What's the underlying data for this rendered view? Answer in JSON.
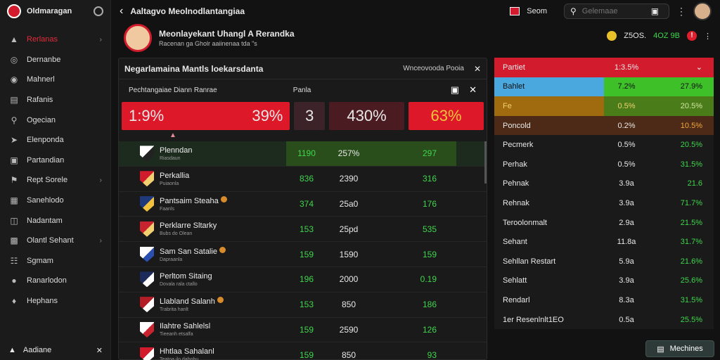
{
  "sidebar": {
    "brand": "Oldmaragan",
    "items": [
      {
        "label": "Rerlanas",
        "icon": "shield-icon",
        "active": true,
        "chevron": true
      },
      {
        "label": "Dernanbe",
        "icon": "compass-icon",
        "active": false,
        "chevron": false
      },
      {
        "label": "Mahnerl",
        "icon": "globe-icon",
        "active": false,
        "chevron": false
      },
      {
        "label": "Rafanis",
        "icon": "chart-icon",
        "active": false,
        "chevron": false
      },
      {
        "label": "Ogecian",
        "icon": "search-icon",
        "active": false,
        "chevron": false
      },
      {
        "label": "Elenponda",
        "icon": "whistle-icon",
        "active": false,
        "chevron": false
      },
      {
        "label": "Partandian",
        "icon": "ball-icon",
        "active": false,
        "chevron": false
      },
      {
        "label": "Rept Sorele",
        "icon": "flag-icon",
        "active": false,
        "chevron": true
      },
      {
        "label": "Sanehlodo",
        "icon": "calendar-icon",
        "active": false,
        "chevron": false
      },
      {
        "label": "Nadantam",
        "icon": "book-icon",
        "active": false,
        "chevron": false
      },
      {
        "label": "Olantl Sehant",
        "icon": "tv-icon",
        "active": false,
        "chevron": true
      },
      {
        "label": "Sgmam",
        "icon": "grid-icon",
        "active": false,
        "chevron": false
      },
      {
        "label": "Ranarlodon",
        "icon": "pin-icon",
        "active": false,
        "chevron": false
      },
      {
        "label": "Hephans",
        "icon": "badge-icon",
        "active": false,
        "chevron": false
      }
    ],
    "footer": "Aadiane"
  },
  "topbar": {
    "title": "Aaltagvo Meolnodlantangiaa",
    "score": "Seom",
    "search_placeholder": "Gelemaae"
  },
  "profile": {
    "name": "Meonlayekant Uhangl A Rerandka",
    "subtitle": "Racenan ga Gholr aaiinenaa tda \"s"
  },
  "stats": {
    "coins": "Z5OS.",
    "change": "4OZ 9B"
  },
  "panel": {
    "title": "Negarlamaina Mantls loekarsdanta",
    "right_label": "Wnceovooda Pooia",
    "sub_left": "Pechtangaiae Diann Ranrae",
    "sub_mid": "Panla",
    "big": [
      "1:9%",
      "39%",
      "3",
      "430%",
      "63%"
    ],
    "rows": [
      {
        "name": "Plenndan",
        "sub": "Riasdaun",
        "c1": "1190",
        "c2": "257%",
        "c3": "297",
        "crest": [
          "#ffffff",
          "#222222"
        ],
        "star": false,
        "hl": true
      },
      {
        "name": "Perkallia",
        "sub": "Puiaonla",
        "c1": "836",
        "c2": "2390",
        "c3": "316",
        "crest": [
          "#d21b2c",
          "#f2d070"
        ],
        "star": false,
        "hl": false
      },
      {
        "name": "Pantsaim Steaha",
        "sub": "Faanls",
        "c1": "374",
        "c2": "25a0",
        "c3": "176",
        "crest": [
          "#1f3a7a",
          "#f2c23d"
        ],
        "star": true,
        "hl": false
      },
      {
        "name": "Perklarre Sltarky",
        "sub": "Bubs do Olean",
        "c1": "153",
        "c2": "25pd",
        "c3": "535",
        "crest": [
          "#c7242f",
          "#f2d070"
        ],
        "star": false,
        "hl": false
      },
      {
        "name": "Sam San Satalie",
        "sub": "Dapraanla",
        "c1": "159",
        "c2": "1590",
        "c3": "159",
        "crest": [
          "#ffffff",
          "#2a4fb0"
        ],
        "star": true,
        "hl": false
      },
      {
        "name": "Perltom Sitaing",
        "sub": "Dovala rala ctallo",
        "c1": "196",
        "c2": "2000",
        "c3": "0.19",
        "crest": [
          "#1c2b5a",
          "#ffffff"
        ],
        "star": false,
        "hl": false
      },
      {
        "name": "Llabland Salanh",
        "sub": "Trabrita hanlt",
        "c1": "153",
        "c2": "850",
        "c3": "186",
        "crest": [
          "#b31d28",
          "#ffffff"
        ],
        "star": true,
        "hl": false
      },
      {
        "name": "Ilahtre Sahlelsl",
        "sub": "Tieeanh etsalfa",
        "c1": "159",
        "c2": "2590",
        "c3": "126",
        "crest": [
          "#ffffff",
          "#c7242f"
        ],
        "star": false,
        "hl": false
      },
      {
        "name": "Hhtlaa Sahalanl",
        "sub": "Teatoa ilo dahohu",
        "c1": "159",
        "c2": "850",
        "c3": "93",
        "crest": [
          "#d21b2c",
          "#ffffff"
        ],
        "star": false,
        "hl": false
      }
    ]
  },
  "right": {
    "rows": [
      {
        "n": "Partiet",
        "v1": "1:3.5%",
        "v2": "",
        "style": "rhead"
      },
      {
        "n": "Bahlet",
        "v1": "7.2%",
        "v2": "27.9%",
        "style": "rblue"
      },
      {
        "n": "Fe",
        "v1": "0.5%",
        "v2": "20.5%",
        "style": "rorange"
      },
      {
        "n": "Poncold",
        "v1": "0.2%",
        "v2": "10.5%",
        "style": "rbrown"
      },
      {
        "n": "Pecmerk",
        "v1": "0.5%",
        "v2": "20.5%",
        "style": "rblack"
      },
      {
        "n": "Perhak",
        "v1": "0.5%",
        "v2": "31.5%",
        "style": "rblack"
      },
      {
        "n": "Pehnak",
        "v1": "3.9a",
        "v2": "21.6",
        "style": "rblack"
      },
      {
        "n": "Rehnak",
        "v1": "3.9a",
        "v2": "71.7%",
        "style": "rblack"
      },
      {
        "n": "Teroolonmalt",
        "v1": "2.9a",
        "v2": "21.5%",
        "style": "rblack"
      },
      {
        "n": "Sehant",
        "v1": "11.8a",
        "v2": "31.7%",
        "style": "rblack"
      },
      {
        "n": "Sehllan Restart",
        "v1": "5.9a",
        "v2": "21.6%",
        "style": "rblack"
      },
      {
        "n": "Sehlatt",
        "v1": "3.9a",
        "v2": "25.6%",
        "style": "rblack"
      },
      {
        "n": "Rendarl",
        "v1": "8.3a",
        "v2": "31.5%",
        "style": "rblack"
      },
      {
        "n": "1er Resenlnlt1EO",
        "v1": "0.5a",
        "v2": "25.5%",
        "style": "rblack"
      }
    ]
  },
  "more_button": "Mechines"
}
